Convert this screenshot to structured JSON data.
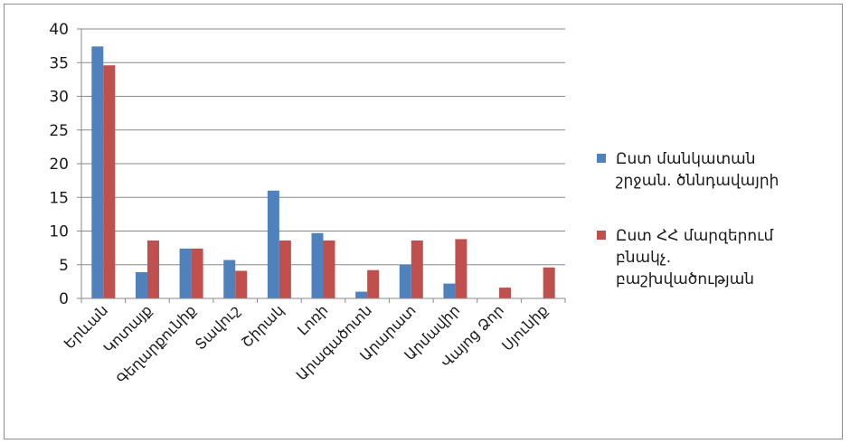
{
  "chart_data": {
    "type": "bar",
    "categories": [
      "Երևան",
      "Կոտայք",
      "Գեղարքունիք",
      "Տավուշ",
      "Շիրակ",
      "Լոռի",
      "Արագածոտն",
      "Արարատ",
      "Արմավիր",
      "Վայոց Ձոր",
      "Սյունիք"
    ],
    "series": [
      {
        "name_lines": [
          "Ըստ մանկատան",
          "շրջան. ծննդավայրի"
        ],
        "color": "#4f81bd",
        "values": [
          37.4,
          3.9,
          7.4,
          5.7,
          16.0,
          9.7,
          1.0,
          5.0,
          2.2,
          0,
          0
        ]
      },
      {
        "name_lines": [
          "Ըստ ՀՀ մարզերում",
          "բնակչ.",
          "բաշխվածության"
        ],
        "color": "#c0504d",
        "values": [
          34.6,
          8.6,
          7.4,
          4.1,
          8.6,
          8.6,
          4.2,
          8.6,
          8.8,
          1.6,
          4.6
        ]
      }
    ],
    "ylim": [
      0,
      40
    ],
    "yticks": [
      0,
      5,
      10,
      15,
      20,
      25,
      30,
      35,
      40
    ],
    "grid": true,
    "legend": "right"
  }
}
